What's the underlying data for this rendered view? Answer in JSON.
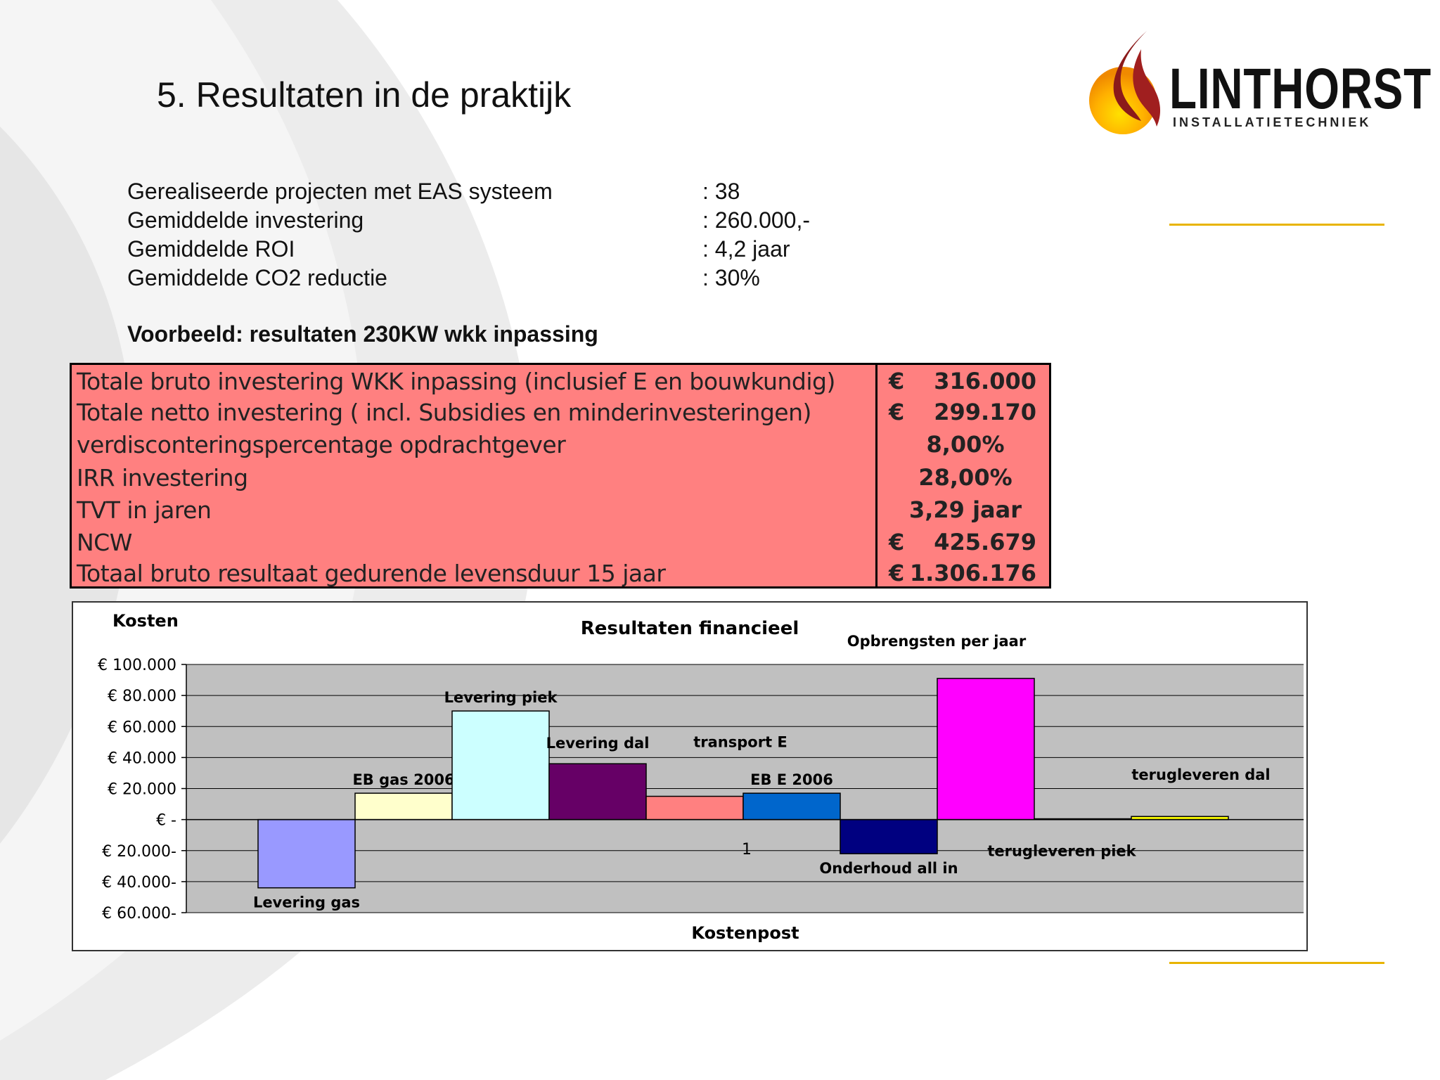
{
  "slide": {
    "title": "5. Resultaten  in de praktijk"
  },
  "logo": {
    "name": "LINTHORST",
    "subtitle": "INSTALLATIETECHNIEK"
  },
  "stats": [
    {
      "label": "Gerealiseerde projecten met EAS systeem",
      "value": ": 38"
    },
    {
      "label": "Gemiddelde investering",
      "value": ": 260.000,-"
    },
    {
      "label": "Gemiddelde ROI",
      "value": ": 4,2 jaar"
    },
    {
      "label": "Gemiddelde CO2 reductie",
      "value": ": 30%"
    }
  ],
  "example_title": "Voorbeeld: resultaten 230KW wkk inpassing",
  "financial_table": {
    "rows": [
      {
        "label": "Totale bruto investering WKK inpassing (inclusief E en bouwkundig)",
        "currency": "€",
        "value": "316.000"
      },
      {
        "label": "Totale netto investering ( incl. Subsidies en minderinvesteringen)",
        "currency": "€",
        "value": "299.170"
      },
      {
        "label": "verdisconteringspercentage opdrachtgever",
        "currency": "",
        "value": "8,00%"
      },
      {
        "label": "IRR investering",
        "currency": "",
        "value": "28,00%"
      },
      {
        "label": "TVT in jaren",
        "currency": "",
        "value": "3,29 jaar"
      },
      {
        "label": "NCW",
        "currency": "€",
        "value": "425.679"
      },
      {
        "label": "Totaal bruto resultaat gedurende levensduur 15 jaar",
        "currency": "€",
        "value": "1.306.176"
      }
    ]
  },
  "colors": {
    "table_bg": "#ff8080",
    "accent_gold": "#e8b400",
    "plot_area": "#c0c0c0"
  },
  "chart_data": {
    "type": "bar",
    "title": "Resultaten financieel",
    "ylabel": "Kosten",
    "xlabel": "Kostenpost",
    "x_tick": "1",
    "ylim": [
      -60000,
      100000
    ],
    "yticks": [
      {
        "value": 100000,
        "label": "€ 100.000"
      },
      {
        "value": 80000,
        "label": "€ 80.000"
      },
      {
        "value": 60000,
        "label": "€ 60.000"
      },
      {
        "value": 40000,
        "label": "€ 40.000"
      },
      {
        "value": 20000,
        "label": "€ 20.000"
      },
      {
        "value": 0,
        "label": "€ -"
      },
      {
        "value": -20000,
        "label": "€ 20.000-"
      },
      {
        "value": -40000,
        "label": "€ 40.000-"
      },
      {
        "value": -60000,
        "label": "€ 60.000-"
      }
    ],
    "series": [
      {
        "name": "Levering gas",
        "value": -44000,
        "color": "#9999ff"
      },
      {
        "name": "EB gas 2006",
        "value": 17000,
        "color": "#ffffcc"
      },
      {
        "name": "Levering piek",
        "value": 70000,
        "color": "#ccffff"
      },
      {
        "name": "Levering dal",
        "value": 36000,
        "color": "#660066"
      },
      {
        "name": "transport E",
        "value": 15000,
        "color": "#ff8080"
      },
      {
        "name": "EB E 2006",
        "value": 17000,
        "color": "#0066cc"
      },
      {
        "name": "Onderhoud all in",
        "value": -22000,
        "color": "#000080"
      },
      {
        "name": "Opbrengsten per jaar",
        "value": 91000,
        "color": "#ff00ff"
      },
      {
        "name": "terugleveren piek",
        "value": 500,
        "color": "#00ffff"
      },
      {
        "name": "terugleveren dal",
        "value": 2000,
        "color": "#ffff00"
      }
    ],
    "grid": true,
    "legend": "none"
  }
}
